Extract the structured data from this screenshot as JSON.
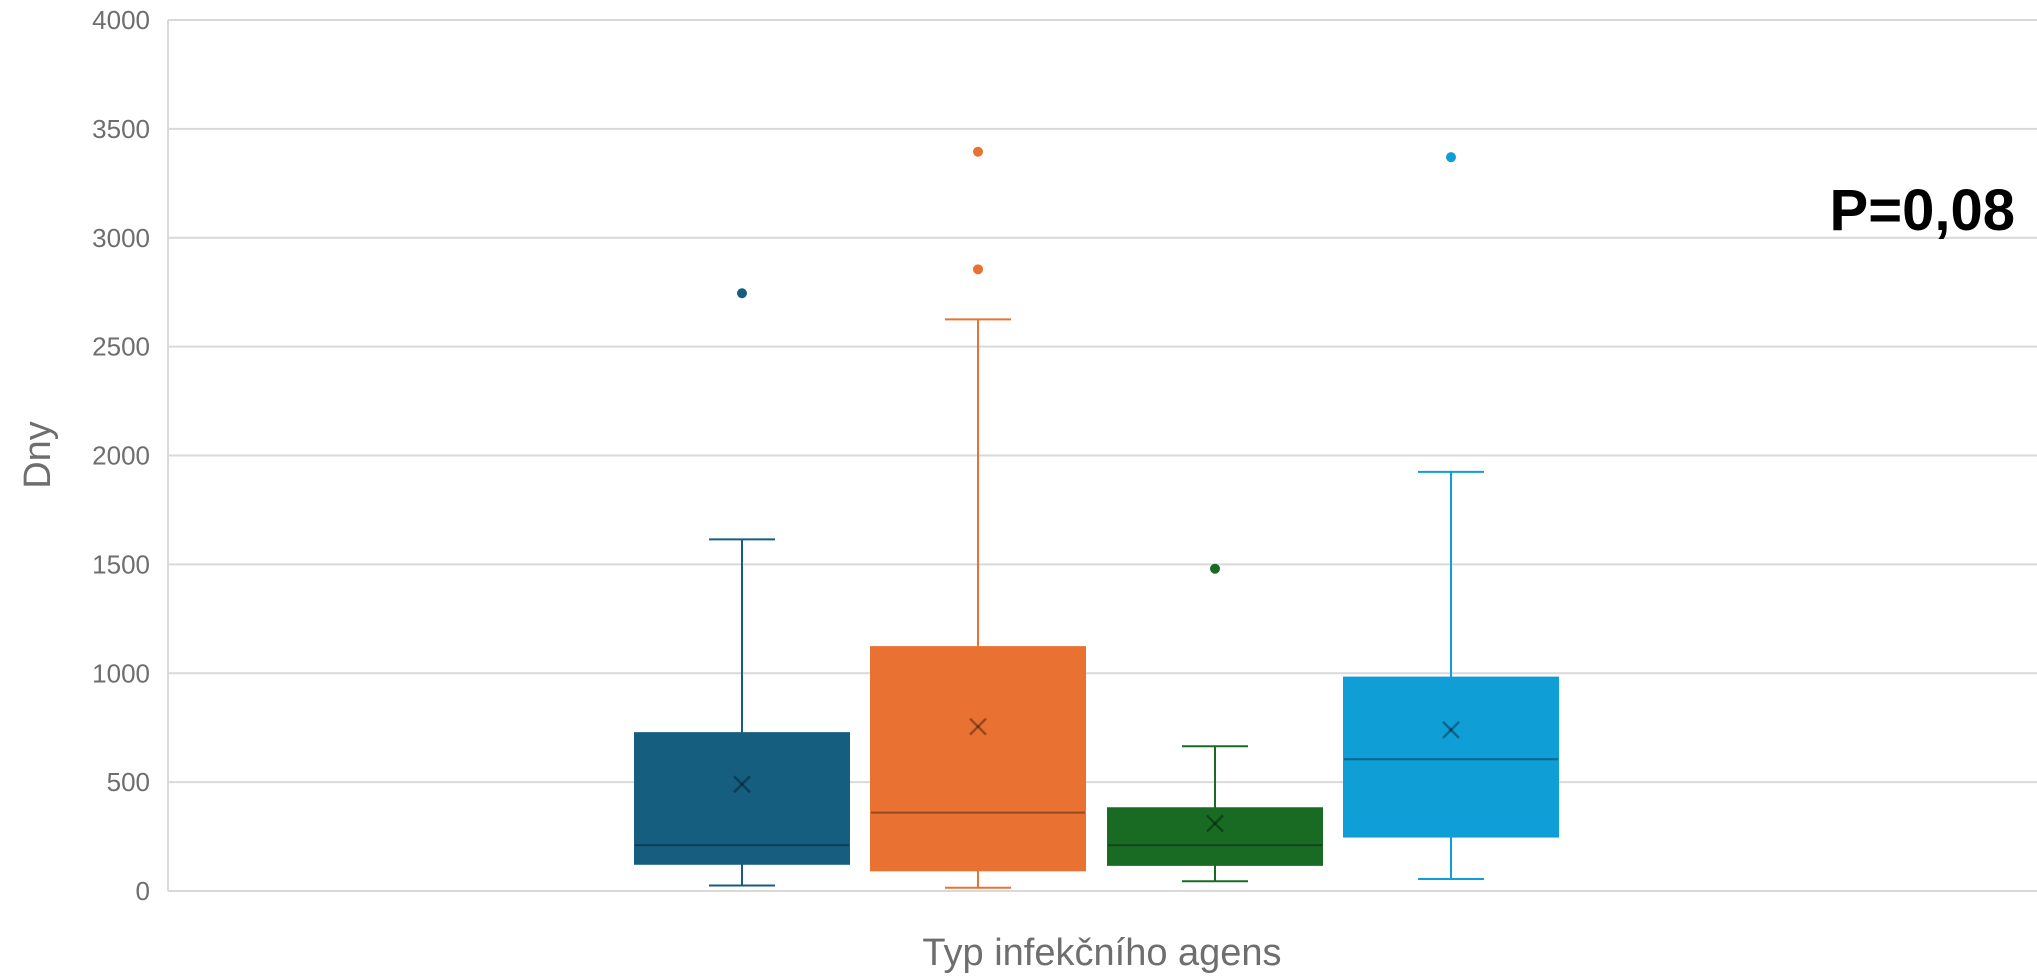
{
  "chart_data": {
    "type": "box",
    "xlabel": "Typ infekčního agens",
    "ylabel": "Dny",
    "ylim": [
      0,
      4000
    ],
    "yticks": [
      0,
      500,
      1000,
      1500,
      2000,
      2500,
      3000,
      3500,
      4000
    ],
    "grid": true,
    "annotation": "P=0,08",
    "series": [
      {
        "color": "#155e80",
        "min": 25,
        "q1": 125,
        "median": 210,
        "q3": 725,
        "max": 1615,
        "mean": 490,
        "outliers": [
          2745
        ]
      },
      {
        "color": "#e97132",
        "min": 15,
        "q1": 95,
        "median": 360,
        "q3": 1120,
        "max": 2625,
        "mean": 755,
        "outliers": [
          2855,
          3395
        ]
      },
      {
        "color": "#196b24",
        "min": 45,
        "q1": 120,
        "median": 210,
        "q3": 380,
        "max": 665,
        "mean": 310,
        "outliers": [
          1480
        ]
      },
      {
        "color": "#0f9ed5",
        "min": 55,
        "q1": 250,
        "median": 605,
        "q3": 980,
        "max": 1925,
        "mean": 740,
        "outliers": [
          3370
        ]
      }
    ]
  }
}
